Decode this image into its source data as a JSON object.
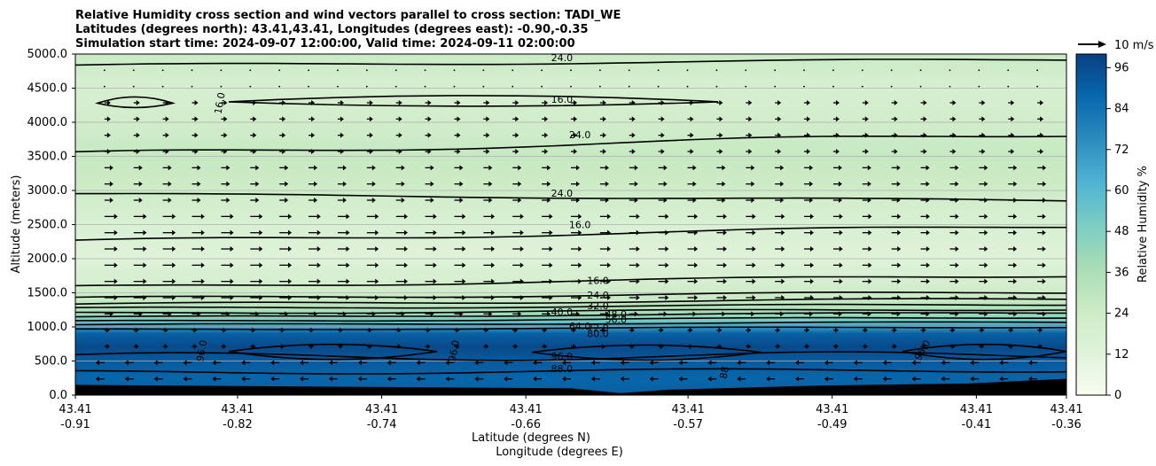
{
  "chart_data": {
    "type": "contourf",
    "title_lines": [
      "Relative Humidity cross section and wind vectors parallel to cross section: TADI_WE",
      "Latitudes (degrees north): 43.41,43.41, Longitudes (degrees east): -0.90,-0.35",
      "Simulation start time: 2024-09-07 12:00:00, Valid time: 2024-09-11 02:00:00"
    ],
    "ylabel": "Altitude (meters)",
    "xlabel_lines": [
      "Latitude (degrees N)",
      "Longitude (degrees E)"
    ],
    "ylim": [
      0,
      5000
    ],
    "yticks": [
      "0.0",
      "500.0",
      "1000.0",
      "1500.0",
      "2000.0",
      "2500.0",
      "3000.0",
      "3500.0",
      "4000.0",
      "4500.0",
      "5000.0"
    ],
    "ytick_values": [
      0,
      500,
      1000,
      1500,
      2000,
      2500,
      3000,
      3500,
      4000,
      4500,
      5000
    ],
    "xticks": [
      {
        "lat": "43.41",
        "lon": "-0.91"
      },
      {
        "lat": "43.41",
        "lon": "-0.82"
      },
      {
        "lat": "43.41",
        "lon": "-0.74"
      },
      {
        "lat": "43.41",
        "lon": "-0.66"
      },
      {
        "lat": "43.41",
        "lon": "-0.57"
      },
      {
        "lat": "43.41",
        "lon": "-0.49"
      },
      {
        "lat": "43.41",
        "lon": "-0.41"
      },
      {
        "lat": "43.41",
        "lon": "-0.36"
      }
    ],
    "xtick_values": [
      -0.91,
      -0.82,
      -0.74,
      -0.66,
      -0.57,
      -0.49,
      -0.41,
      -0.36
    ],
    "xlim": [
      -0.91,
      -0.36
    ],
    "grid": "horizontal",
    "humidity_profile": [
      {
        "alt": 0,
        "rh": 90
      },
      {
        "alt": 250,
        "rh": 88
      },
      {
        "alt": 500,
        "rh": 92
      },
      {
        "alt": 700,
        "rh": 97
      },
      {
        "alt": 900,
        "rh": 90
      },
      {
        "alt": 1000,
        "rh": 70
      },
      {
        "alt": 1100,
        "rh": 50
      },
      {
        "alt": 1200,
        "rh": 38
      },
      {
        "alt": 1400,
        "rh": 26
      },
      {
        "alt": 1700,
        "rh": 18
      },
      {
        "alt": 2000,
        "rh": 14
      },
      {
        "alt": 2500,
        "rh": 17
      },
      {
        "alt": 3000,
        "rh": 24
      },
      {
        "alt": 3500,
        "rh": 27
      },
      {
        "alt": 4000,
        "rh": 22
      },
      {
        "alt": 4500,
        "rh": 18
      },
      {
        "alt": 5000,
        "rh": 26
      }
    ],
    "contour_labels": [
      {
        "text": "24.0",
        "lon": -0.64,
        "alt": 4950
      },
      {
        "text": "16.0",
        "lon": -0.64,
        "alt": 4340
      },
      {
        "text": "16.0",
        "lon": -0.83,
        "alt": 4280,
        "rotate": -80
      },
      {
        "text": "24.0",
        "lon": -0.63,
        "alt": 3820
      },
      {
        "text": "24.0",
        "lon": -0.64,
        "alt": 2960
      },
      {
        "text": "16.0",
        "lon": -0.63,
        "alt": 2500
      },
      {
        "text": "16.0",
        "lon": -0.62,
        "alt": 1680
      },
      {
        "text": "24.0",
        "lon": -0.62,
        "alt": 1470
      },
      {
        "text": "32.0",
        "lon": -0.62,
        "alt": 1310
      },
      {
        "text": "40.0",
        "lon": -0.64,
        "alt": 1220
      },
      {
        "text": "48.0",
        "lon": -0.61,
        "alt": 1190
      },
      {
        "text": "56.0",
        "lon": -0.61,
        "alt": 1110
      },
      {
        "text": "64.0",
        "lon": -0.63,
        "alt": 1010
      },
      {
        "text": "72.0",
        "lon": -0.62,
        "alt": 990
      },
      {
        "text": "80.0",
        "lon": -0.62,
        "alt": 900
      },
      {
        "text": "96.0",
        "lon": -0.84,
        "alt": 650,
        "rotate": -80
      },
      {
        "text": "96.0",
        "lon": -0.7,
        "alt": 650,
        "rotate": -80
      },
      {
        "text": "96.0",
        "lon": -0.64,
        "alt": 570
      },
      {
        "text": "88.0",
        "lon": -0.64,
        "alt": 390
      },
      {
        "text": "88",
        "lon": -0.55,
        "alt": 330,
        "rotate": -80
      },
      {
        "text": "96.0",
        "lon": -0.44,
        "alt": 660,
        "rotate": -60
      }
    ],
    "colorbar": {
      "label": "Relative Humidity %",
      "ticks": [
        "0",
        "12",
        "24",
        "36",
        "48",
        "60",
        "72",
        "84",
        "96"
      ],
      "tick_values": [
        0,
        12,
        24,
        36,
        48,
        60,
        72,
        84,
        96
      ],
      "range": [
        0,
        100
      ]
    },
    "quiver_key": {
      "label": "10 m/s"
    }
  },
  "colors": {
    "cmap": [
      "#f7fcf0",
      "#e0f3db",
      "#ccebc5",
      "#a8ddb5",
      "#7bccc4",
      "#4eb3d3",
      "#2b8cbe",
      "#0868ac",
      "#084081"
    ],
    "terrain": "#000000",
    "contour": "#000000",
    "grid": "#b0b0b0"
  }
}
